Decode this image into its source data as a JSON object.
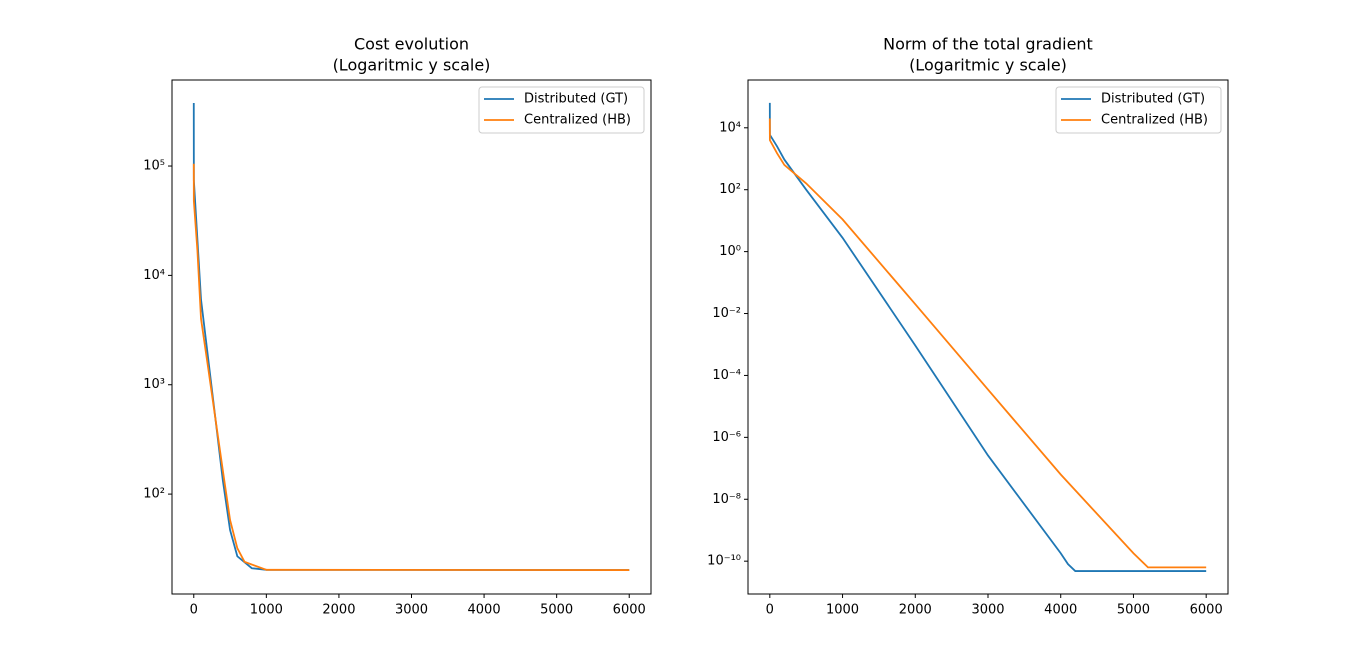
{
  "chart_data": [
    {
      "type": "line",
      "title": "Cost evolution",
      "subtitle": "(Logaritmic y scale)",
      "yscale": "log",
      "legend": "upper right",
      "xlim": [
        -300,
        6300
      ],
      "xticks": [
        0,
        1000,
        2000,
        3000,
        4000,
        5000,
        6000
      ],
      "ylim": [
        12.2,
        612000
      ],
      "yticks": [
        {
          "value": 100,
          "label": "10²"
        },
        {
          "value": 1000,
          "label": "10³"
        },
        {
          "value": 10000,
          "label": "10⁴"
        },
        {
          "value": 100000,
          "label": "10⁵"
        }
      ],
      "series": [
        {
          "name": "Distributed (GT)",
          "color": "#1f77b4",
          "x": [
            0,
            1,
            100,
            200,
            300,
            400,
            500,
            600,
            800,
            1000,
            6000
          ],
          "values": [
            377000,
            74000,
            6000,
            1700,
            480,
            134,
            47,
            27,
            21,
            20.3,
            20.2
          ]
        },
        {
          "name": "Centralized (HB)",
          "color": "#ff7f0e",
          "x": [
            0,
            1,
            50,
            100,
            200,
            300,
            400,
            500,
            600,
            700,
            1000,
            6000
          ],
          "values": [
            105000,
            48000,
            17000,
            4000,
            1400,
            480,
            165,
            58,
            32,
            24,
            20.3,
            20.2
          ]
        }
      ]
    },
    {
      "type": "line",
      "title": "Norm of the total gradient",
      "subtitle": "(Logaritmic y scale)",
      "yscale": "log",
      "legend": "upper right",
      "xlim": [
        -300,
        6300
      ],
      "xticks": [
        0,
        1000,
        2000,
        3000,
        4000,
        5000,
        6000
      ],
      "ylim": [
        8.7e-12,
        350000
      ],
      "yticks": [
        {
          "value": 1e-10,
          "label": "10⁻¹⁰"
        },
        {
          "value": 1e-08,
          "label": "10⁻⁸"
        },
        {
          "value": 1e-06,
          "label": "10⁻⁶"
        },
        {
          "value": 0.0001,
          "label": "10⁻⁴"
        },
        {
          "value": 0.01,
          "label": "10⁻²"
        },
        {
          "value": 1,
          "label": "10⁰"
        },
        {
          "value": 100,
          "label": "10²"
        },
        {
          "value": 10000,
          "label": "10⁴"
        }
      ],
      "series": [
        {
          "name": "Distributed (GT)",
          "color": "#1f77b4",
          "x": [
            0,
            1,
            100,
            200,
            500,
            1000,
            2000,
            3000,
            4000,
            4100,
            4200,
            6000
          ],
          "values": [
            64000,
            5900,
            2500,
            940,
            100,
            2.8,
            0.00093,
            2.6e-07,
            1.8e-10,
            8e-11,
            4.8e-11,
            4.8e-11
          ]
        },
        {
          "name": "Centralized (HB)",
          "color": "#ff7f0e",
          "x": [
            0,
            1,
            100,
            200,
            500,
            1000,
            2000,
            3000,
            4000,
            5000,
            5200,
            6000
          ],
          "values": [
            20000,
            4000,
            1500,
            630,
            160,
            11,
            0.02,
            3.5e-05,
            6.3e-08,
            1.8e-10,
            6.3e-11,
            6.3e-11
          ]
        }
      ]
    }
  ]
}
